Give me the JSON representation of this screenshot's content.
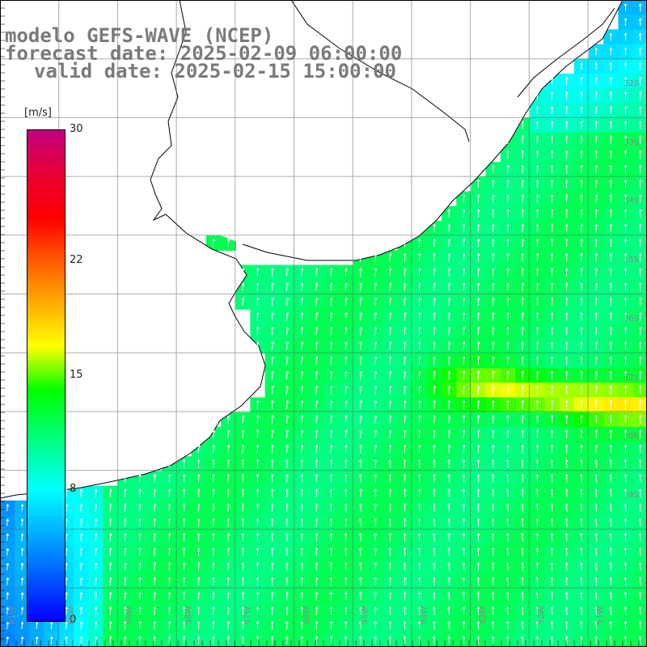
{
  "title": {
    "line1": "modelo GEFS-WAVE (NCEP)",
    "line2": "forecast date: 2025-02-09 06:00:00",
    "line3": "valid date: 2025-02-15 15:00:00"
  },
  "colorbar": {
    "unit": "[m/s]",
    "min": 0,
    "max": 30,
    "ticks": [
      {
        "value": 30,
        "label": "30"
      },
      {
        "value": 22,
        "label": "22"
      },
      {
        "value": 15,
        "label": "15"
      },
      {
        "value": 8,
        "label": "8"
      },
      {
        "value": 0,
        "label": "0"
      }
    ]
  },
  "axes": {
    "lon_labels": [
      "61W",
      "60W",
      "59W",
      "58W",
      "57W",
      "56W",
      "55W",
      "54W",
      "53W",
      "52W",
      "51W"
    ],
    "lat_labels": [
      "32S",
      "33S",
      "34S",
      "35S",
      "36S",
      "37S",
      "38S",
      "39S"
    ]
  },
  "map": {
    "grid": true,
    "land_color": "#ffffff",
    "coast_color": "#000000",
    "arrow_color": "#ffffff",
    "field": "wind speed with direction arrows"
  }
}
